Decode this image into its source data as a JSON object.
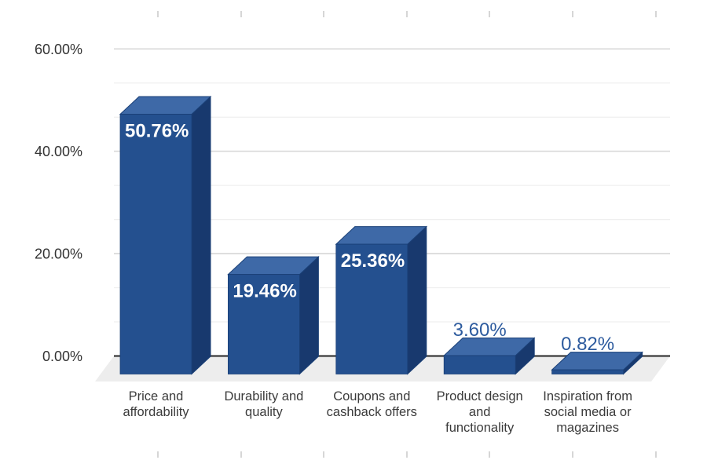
{
  "chart_data": {
    "type": "bar",
    "variant": "3d-column",
    "title": "",
    "xlabel": "",
    "ylabel": "",
    "legend_position": "none",
    "categories": [
      "Price and affordability",
      "Durability and quality",
      "Coupons and cashback offers",
      "Product design and functionality",
      "Inspiration from social media or magazines"
    ],
    "category_label_lines": [
      [
        "Price and",
        "affordability"
      ],
      [
        "Durability and",
        "quality"
      ],
      [
        "Coupons and",
        "cashback offers"
      ],
      [
        "Product design",
        "and",
        "functionality"
      ],
      [
        "Inspiration from",
        "social media or",
        "magazines"
      ]
    ],
    "values": [
      50.76,
      19.46,
      25.36,
      3.6,
      0.82
    ],
    "data_labels": [
      "50.76%",
      "19.46%",
      "25.36%",
      "3.60%",
      "0.82%"
    ],
    "data_label_placement": [
      "inside-top",
      "inside-top",
      "inside-top",
      "above",
      "above"
    ],
    "y_axis": {
      "tick_labels": [
        "0.00%",
        "20.00%",
        "40.00%",
        "60.00%"
      ],
      "tick_values": [
        0,
        20,
        40,
        60
      ],
      "min": 0,
      "max": 60,
      "major_step": 20,
      "minor_gridlines_per_major": 3,
      "grid": true
    },
    "colors": {
      "bar_front": "#24508F",
      "bar_top": "#3E69A7",
      "bar_side": "#18396E",
      "bar_edge": "#1B4077",
      "label_inside": "#FFFFFF",
      "label_above": "#2D5B9E",
      "axis_text": "#333333",
      "category_text": "#3B3B3B",
      "grid_major": "#D8D8D8",
      "grid_minor": "#EFEFEF",
      "zero_line": "#4D4D4D",
      "floor": "#EDEDED",
      "background": "#FFFFFF",
      "ruler_tick": "#D6D6D6"
    }
  },
  "decorations": {
    "sheet_column_tick_xs": [
      201,
      307,
      412,
      518,
      623,
      729,
      835
    ]
  }
}
